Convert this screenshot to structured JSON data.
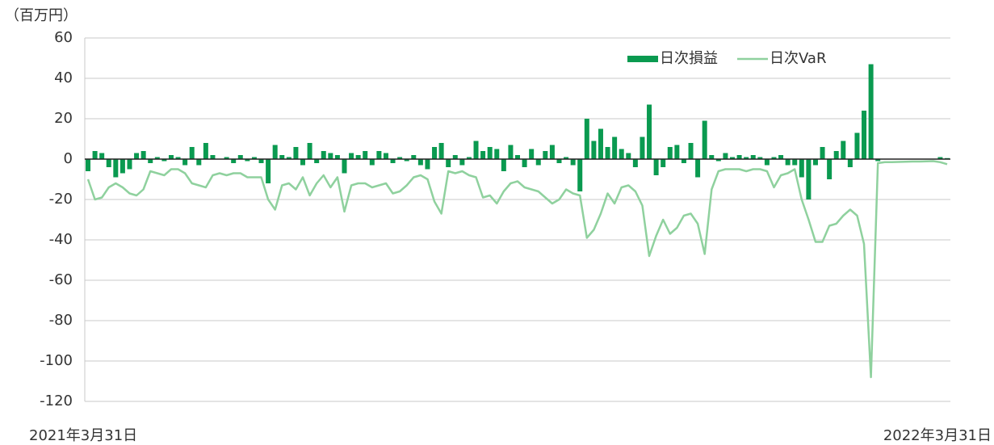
{
  "chart_data": {
    "type": "bar_line",
    "y_axis_label": "（百万円）",
    "categories": [
      "2021年3月31日",
      null,
      null,
      null,
      null,
      null,
      null,
      null,
      null,
      null,
      null,
      null,
      null,
      null,
      null,
      null,
      null,
      null,
      null,
      null,
      null,
      null,
      null,
      null,
      null,
      null,
      null,
      null,
      null,
      null,
      null,
      null,
      null,
      null,
      null,
      null,
      null,
      null,
      null,
      null,
      null,
      null,
      null,
      null,
      null,
      null,
      null,
      null,
      null,
      null,
      null,
      null,
      null,
      null,
      null,
      null,
      null,
      null,
      null,
      null,
      null,
      null,
      null,
      null,
      null,
      null,
      null,
      null,
      null,
      null,
      null,
      null,
      null,
      null,
      null,
      null,
      null,
      null,
      null,
      null,
      null,
      null,
      null,
      null,
      null,
      null,
      null,
      null,
      null,
      null,
      null,
      null,
      null,
      null,
      null,
      null,
      null,
      null,
      null,
      null,
      null,
      null,
      null,
      null,
      null,
      null,
      null,
      null,
      null,
      null,
      null,
      null,
      null,
      null,
      null,
      null,
      null,
      null,
      null,
      null,
      null,
      null,
      null,
      null,
      "2022年3月31日"
    ],
    "series": [
      {
        "name": "日次損益",
        "type": "bar",
        "color": "#0a9a50",
        "values": [
          -6,
          4,
          3,
          -4,
          -9,
          -7,
          -5,
          3,
          4,
          -2,
          1,
          -1,
          2,
          1,
          -3,
          6,
          -3,
          8,
          2,
          0,
          1,
          -2,
          2,
          -1,
          1,
          -2,
          -12,
          7,
          2,
          1,
          6,
          -3,
          8,
          -2,
          4,
          3,
          2,
          -7,
          3,
          2,
          4,
          -3,
          4,
          3,
          -2,
          1,
          -1,
          2,
          -3,
          -5,
          6,
          8,
          -4,
          2,
          -3,
          1,
          9,
          4,
          6,
          5,
          -6,
          7,
          2,
          -4,
          5,
          -3,
          4,
          7,
          -2,
          1,
          -3,
          -16,
          20,
          9,
          15,
          6,
          11,
          5,
          3,
          -4,
          11,
          27,
          -8,
          -4,
          6,
          7,
          -2,
          8,
          -9,
          19,
          2,
          -1,
          3,
          1,
          2,
          1,
          2,
          1,
          -3,
          1,
          2,
          -3,
          -3,
          -9,
          -20,
          -3,
          6,
          -10,
          4,
          9,
          -4,
          13,
          24,
          47,
          -1,
          0,
          0,
          0,
          0,
          0,
          0,
          0,
          0,
          1,
          0.5
        ]
      },
      {
        "name": "日次VaR",
        "type": "line",
        "color": "#8fd19e",
        "values": [
          -10,
          -20,
          -19,
          -14,
          -12,
          -14,
          -17,
          -18,
          -15,
          -6,
          -7,
          -8,
          -5,
          -5,
          -7,
          -12,
          -13,
          -14,
          -8,
          -7,
          -8,
          -7,
          -7,
          -9,
          -9,
          -9,
          -20,
          -25,
          -13,
          -12,
          -15,
          -9,
          -18,
          -12,
          -8,
          -14,
          -9,
          -26,
          -13,
          -12,
          -12,
          -14,
          -13,
          -12,
          -17,
          -16,
          -13,
          -9,
          -8,
          -10,
          -21,
          -27,
          -6,
          -7,
          -6,
          -8,
          -9,
          -19,
          -18,
          -22,
          -16,
          -12,
          -11,
          -14,
          -15,
          -16,
          -19,
          -22,
          -20,
          -15,
          -17,
          -18,
          -39,
          -35,
          -27,
          -17,
          -22,
          -14,
          -13,
          -16,
          -23,
          -48,
          -38,
          -30,
          -37,
          -34,
          -28,
          -27,
          -32,
          -47,
          -15,
          -6,
          -5,
          -5,
          -5,
          -6,
          -5,
          -5,
          -6,
          -14,
          -8,
          -7,
          -5,
          -20,
          -30,
          -41,
          -41,
          -33,
          -32,
          -28,
          -25,
          -28,
          -42,
          -108,
          -2,
          -1.5,
          -1.5,
          -1.4,
          -1.3,
          -1.2,
          -1.2,
          -1.1,
          -1,
          -1.5,
          -2.5
        ]
      }
    ],
    "ylim": [
      -120,
      60
    ],
    "yticks": [
      -120,
      -100,
      -80,
      -60,
      -40,
      -20,
      0,
      20,
      40,
      60
    ],
    "grid": true,
    "legend": "top-right"
  }
}
